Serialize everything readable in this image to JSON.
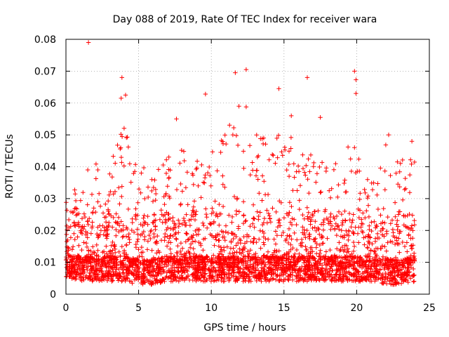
{
  "chart_data": {
    "type": "scatter",
    "title": "Day 088 of 2019, Rate Of TEC Index for receiver wara",
    "xlabel": "GPS time / hours",
    "ylabel": "ROTI / TECUs",
    "xlim": [
      0,
      25
    ],
    "ylim": [
      0,
      0.08
    ],
    "x_ticks": [
      0,
      5,
      10,
      15,
      20,
      25
    ],
    "x_tick_labels": [
      "0",
      "5",
      "10",
      "15",
      "20",
      "25"
    ],
    "y_ticks": [
      0,
      0.01,
      0.02,
      0.03,
      0.04,
      0.05,
      0.06,
      0.07,
      0.08
    ],
    "y_tick_labels": [
      "0",
      "0.01",
      "0.02",
      "0.03",
      "0.04",
      "0.05",
      "0.06",
      "0.07",
      "0.08"
    ],
    "grid": true,
    "marker": "+",
    "marker_color": "#ff0000",
    "series": [
      {
        "name": "ROTI",
        "notable_points": [
          {
            "x": 1.55,
            "y": 0.079
          },
          {
            "x": 3.85,
            "y": 0.068
          },
          {
            "x": 3.8,
            "y": 0.0615
          },
          {
            "x": 4.1,
            "y": 0.0625
          },
          {
            "x": 9.6,
            "y": 0.0628
          },
          {
            "x": 11.65,
            "y": 0.0695
          },
          {
            "x": 12.4,
            "y": 0.0705
          },
          {
            "x": 12.4,
            "y": 0.0588
          },
          {
            "x": 14.65,
            "y": 0.0645
          },
          {
            "x": 16.6,
            "y": 0.068
          },
          {
            "x": 19.85,
            "y": 0.07
          },
          {
            "x": 19.95,
            "y": 0.0673
          },
          {
            "x": 19.95,
            "y": 0.063
          },
          {
            "x": 11.9,
            "y": 0.059
          },
          {
            "x": 17.5,
            "y": 0.0555
          },
          {
            "x": 7.6,
            "y": 0.055
          },
          {
            "x": 15.5,
            "y": 0.056
          },
          {
            "x": 22.2,
            "y": 0.05
          },
          {
            "x": 23.8,
            "y": 0.048
          }
        ],
        "envelope": {
          "x_hours": [
            0,
            1,
            2,
            3,
            4,
            5,
            6,
            7,
            8,
            9,
            10,
            11,
            12,
            13,
            14,
            15,
            16,
            17,
            18,
            19,
            20,
            21,
            22,
            23,
            24
          ],
          "typical_peak": [
            0.034,
            0.036,
            0.042,
            0.04,
            0.054,
            0.045,
            0.038,
            0.043,
            0.048,
            0.045,
            0.044,
            0.055,
            0.052,
            0.05,
            0.053,
            0.052,
            0.047,
            0.044,
            0.043,
            0.047,
            0.046,
            0.035,
            0.048,
            0.042,
            0.047
          ],
          "baseline_min": [
            0.005,
            0.004,
            0.004,
            0.004,
            0.004,
            0.003,
            0.003,
            0.004,
            0.004,
            0.004,
            0.004,
            0.004,
            0.004,
            0.004,
            0.004,
            0.004,
            0.004,
            0.004,
            0.004,
            0.004,
            0.004,
            0.004,
            0.003,
            0.003,
            0.004
          ]
        }
      }
    ]
  }
}
